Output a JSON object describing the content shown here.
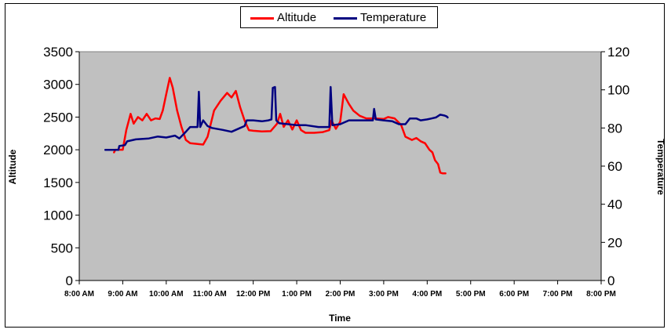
{
  "chart_data": {
    "type": "line",
    "title": "",
    "xlabel": "Time",
    "ylabel": "Altitude",
    "y2label": "Temperature",
    "ylim": [
      0,
      3500
    ],
    "y2lim": [
      0,
      120
    ],
    "yticks": [
      "0",
      "500",
      "1000",
      "1500",
      "2000",
      "2500",
      "3000",
      "3500"
    ],
    "y2ticks": [
      "0",
      "20",
      "40",
      "60",
      "80",
      "100",
      "120"
    ],
    "xticks": [
      "8:00 AM",
      "9:00 AM",
      "10:00 AM",
      "11:00 AM",
      "12:00 PM",
      "1:00 PM",
      "2:00 PM",
      "3:00 PM",
      "4:00 PM",
      "5:00 PM",
      "6:00 PM",
      "7:00 PM",
      "8:00 PM"
    ],
    "xlim_hours": [
      8,
      20
    ],
    "legend": {
      "position": "top-center"
    },
    "series": [
      {
        "name": "Altitude",
        "color": "#ff0000",
        "axis": "left",
        "points": [
          [
            8.8,
            1960
          ],
          [
            8.83,
            2000
          ],
          [
            9.0,
            2000
          ],
          [
            9.08,
            2300
          ],
          [
            9.18,
            2550
          ],
          [
            9.25,
            2400
          ],
          [
            9.35,
            2500
          ],
          [
            9.45,
            2450
          ],
          [
            9.55,
            2550
          ],
          [
            9.65,
            2450
          ],
          [
            9.75,
            2480
          ],
          [
            9.85,
            2470
          ],
          [
            9.92,
            2600
          ],
          [
            10.0,
            2850
          ],
          [
            10.08,
            3100
          ],
          [
            10.15,
            2950
          ],
          [
            10.25,
            2600
          ],
          [
            10.35,
            2350
          ],
          [
            10.45,
            2150
          ],
          [
            10.55,
            2100
          ],
          [
            10.7,
            2090
          ],
          [
            10.85,
            2080
          ],
          [
            10.95,
            2200
          ],
          [
            11.1,
            2600
          ],
          [
            11.25,
            2750
          ],
          [
            11.4,
            2870
          ],
          [
            11.5,
            2800
          ],
          [
            11.6,
            2900
          ],
          [
            11.7,
            2650
          ],
          [
            11.8,
            2450
          ],
          [
            11.9,
            2300
          ],
          [
            12.0,
            2290
          ],
          [
            12.2,
            2280
          ],
          [
            12.4,
            2285
          ],
          [
            12.55,
            2400
          ],
          [
            12.62,
            2550
          ],
          [
            12.7,
            2350
          ],
          [
            12.8,
            2450
          ],
          [
            12.9,
            2310
          ],
          [
            13.0,
            2450
          ],
          [
            13.1,
            2300
          ],
          [
            13.2,
            2260
          ],
          [
            13.4,
            2260
          ],
          [
            13.6,
            2270
          ],
          [
            13.75,
            2300
          ],
          [
            13.8,
            2450
          ],
          [
            13.9,
            2320
          ],
          [
            14.0,
            2430
          ],
          [
            14.08,
            2850
          ],
          [
            14.2,
            2700
          ],
          [
            14.3,
            2600
          ],
          [
            14.45,
            2520
          ],
          [
            14.6,
            2480
          ],
          [
            14.8,
            2480
          ],
          [
            15.0,
            2470
          ],
          [
            15.1,
            2500
          ],
          [
            15.25,
            2480
          ],
          [
            15.4,
            2380
          ],
          [
            15.5,
            2200
          ],
          [
            15.65,
            2150
          ],
          [
            15.75,
            2180
          ],
          [
            15.85,
            2130
          ],
          [
            15.95,
            2100
          ],
          [
            16.05,
            2000
          ],
          [
            16.12,
            1960
          ],
          [
            16.18,
            1840
          ],
          [
            16.25,
            1780
          ],
          [
            16.3,
            1650
          ],
          [
            16.35,
            1640
          ],
          [
            16.42,
            1640
          ]
        ]
      },
      {
        "name": "Temperature",
        "color": "#000080",
        "axis": "right",
        "points": [
          [
            8.6,
            68.5
          ],
          [
            8.9,
            68.5
          ],
          [
            8.92,
            70.5
          ],
          [
            9.05,
            71
          ],
          [
            9.1,
            73
          ],
          [
            9.3,
            74
          ],
          [
            9.6,
            74.5
          ],
          [
            9.8,
            75.5
          ],
          [
            10.0,
            75
          ],
          [
            10.2,
            76
          ],
          [
            10.3,
            74.5
          ],
          [
            10.45,
            78
          ],
          [
            10.55,
            80.5
          ],
          [
            10.72,
            80.5
          ],
          [
            10.75,
            99
          ],
          [
            10.78,
            80.5
          ],
          [
            10.85,
            84
          ],
          [
            10.95,
            81
          ],
          [
            11.05,
            80
          ],
          [
            11.3,
            79
          ],
          [
            11.5,
            78
          ],
          [
            11.7,
            80
          ],
          [
            11.8,
            81
          ],
          [
            11.85,
            84
          ],
          [
            12.0,
            84
          ],
          [
            12.2,
            83.5
          ],
          [
            12.35,
            84
          ],
          [
            12.42,
            84.5
          ],
          [
            12.45,
            101
          ],
          [
            12.5,
            101.5
          ],
          [
            12.53,
            84
          ],
          [
            12.6,
            82.5
          ],
          [
            12.8,
            82
          ],
          [
            13.0,
            81.5
          ],
          [
            13.2,
            81.5
          ],
          [
            13.5,
            80.5
          ],
          [
            13.75,
            80.5
          ],
          [
            13.78,
            101.5
          ],
          [
            13.82,
            81.5
          ],
          [
            14.0,
            82
          ],
          [
            14.2,
            84
          ],
          [
            14.5,
            84
          ],
          [
            14.75,
            84
          ],
          [
            14.78,
            90
          ],
          [
            14.82,
            84.5
          ],
          [
            15.0,
            84
          ],
          [
            15.2,
            83.5
          ],
          [
            15.35,
            82
          ],
          [
            15.5,
            82
          ],
          [
            15.6,
            85
          ],
          [
            15.75,
            85
          ],
          [
            15.85,
            84
          ],
          [
            16.0,
            84.5
          ],
          [
            16.1,
            85
          ],
          [
            16.2,
            85.5
          ],
          [
            16.3,
            87
          ],
          [
            16.4,
            86.5
          ],
          [
            16.45,
            86
          ],
          [
            16.47,
            85.5
          ]
        ]
      }
    ]
  }
}
